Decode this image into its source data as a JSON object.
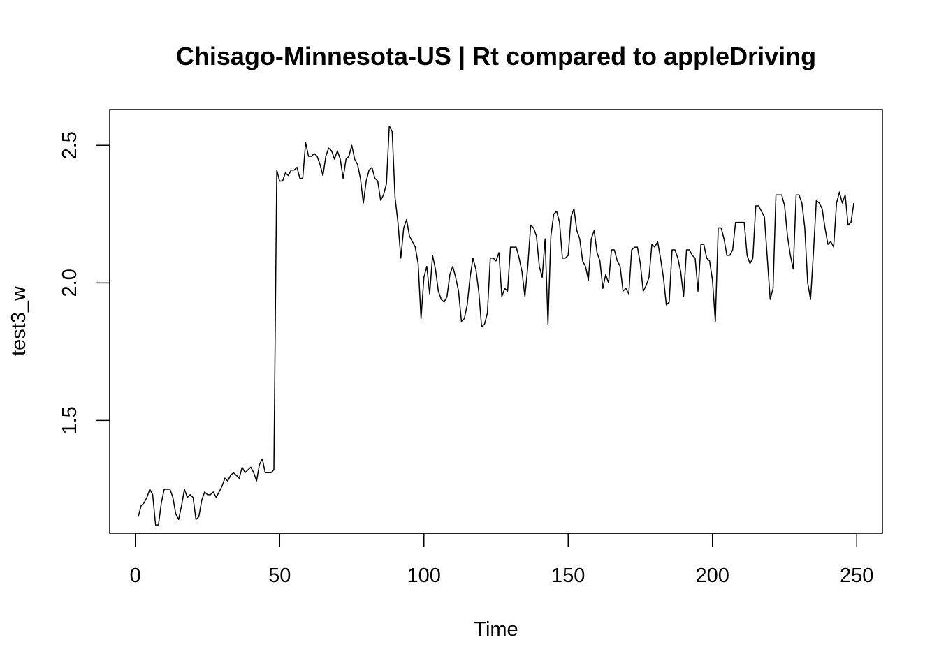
{
  "chart_data": {
    "type": "line",
    "title": "Chisago-Minnesota-US | Rt compared to appleDriving",
    "xlabel": "Time",
    "ylabel": "test3_w",
    "xlim": [
      -8.9,
      258.9
    ],
    "ylim": [
      1.09,
      2.63
    ],
    "x_ticks": [
      0,
      50,
      100,
      150,
      200,
      250
    ],
    "x_tick_labels": [
      "0",
      "50",
      "100",
      "150",
      "200",
      "250"
    ],
    "y_ticks": [
      1.5,
      2.0,
      2.5
    ],
    "y_tick_labels": [
      "1.5",
      "2.0",
      "2.5"
    ],
    "grid": false,
    "legend": "none",
    "line_color": "#000000",
    "series": [
      {
        "x_start": 1,
        "values": [
          1.15,
          1.19,
          1.2,
          1.22,
          1.25,
          1.23,
          1.12,
          1.12,
          1.2,
          1.25,
          1.25,
          1.25,
          1.22,
          1.16,
          1.14,
          1.19,
          1.25,
          1.22,
          1.23,
          1.22,
          1.14,
          1.15,
          1.21,
          1.24,
          1.23,
          1.23,
          1.24,
          1.22,
          1.24,
          1.26,
          1.29,
          1.28,
          1.3,
          1.31,
          1.3,
          1.29,
          1.33,
          1.31,
          1.32,
          1.33,
          1.31,
          1.28,
          1.34,
          1.36,
          1.31,
          1.31,
          1.31,
          1.32,
          2.41,
          2.37,
          2.37,
          2.4,
          2.39,
          2.41,
          2.41,
          2.42,
          2.38,
          2.38,
          2.51,
          2.46,
          2.46,
          2.47,
          2.46,
          2.43,
          2.39,
          2.46,
          2.49,
          2.48,
          2.45,
          2.48,
          2.45,
          2.38,
          2.45,
          2.46,
          2.5,
          2.45,
          2.43,
          2.38,
          2.29,
          2.37,
          2.41,
          2.42,
          2.38,
          2.37,
          2.3,
          2.32,
          2.36,
          2.57,
          2.55,
          2.31,
          2.22,
          2.09,
          2.2,
          2.23,
          2.17,
          2.15,
          2.13,
          2.07,
          1.87,
          2.02,
          2.06,
          1.96,
          2.1,
          2.05,
          1.97,
          1.94,
          1.93,
          1.95,
          2.03,
          2.06,
          2.02,
          1.97,
          1.86,
          1.87,
          1.92,
          2.02,
          2.09,
          2.05,
          1.97,
          1.84,
          1.85,
          1.89,
          2.09,
          2.09,
          2.08,
          2.11,
          1.95,
          1.98,
          1.97,
          2.13,
          2.13,
          2.13,
          2.09,
          2.04,
          1.95,
          2.06,
          2.21,
          2.2,
          2.17,
          2.06,
          2.02,
          2.16,
          1.85,
          2.17,
          2.25,
          2.26,
          2.22,
          2.09,
          2.09,
          2.1,
          2.24,
          2.27,
          2.19,
          2.16,
          2.08,
          2.06,
          2.01,
          2.16,
          2.19,
          2.11,
          2.08,
          1.98,
          2.03,
          2.0,
          2.12,
          2.12,
          2.08,
          2.06,
          1.97,
          1.98,
          1.96,
          2.12,
          2.13,
          2.13,
          2.07,
          1.97,
          1.99,
          2.02,
          2.14,
          2.13,
          2.15,
          2.09,
          2.02,
          1.92,
          1.93,
          2.12,
          2.12,
          2.09,
          2.04,
          1.95,
          2.12,
          2.12,
          2.1,
          2.09,
          1.97,
          2.14,
          2.14,
          2.09,
          2.08,
          2.01,
          1.86,
          2.2,
          2.2,
          2.16,
          2.1,
          2.1,
          2.12,
          2.22,
          2.22,
          2.22,
          2.22,
          2.1,
          2.07,
          2.09,
          2.28,
          2.28,
          2.26,
          2.24,
          2.09,
          1.94,
          1.98,
          2.32,
          2.32,
          2.32,
          2.28,
          2.17,
          2.1,
          2.05,
          2.32,
          2.32,
          2.29,
          2.2,
          2.0,
          1.94,
          2.11,
          2.3,
          2.29,
          2.27,
          2.2,
          2.14,
          2.15,
          2.13,
          2.29,
          2.33,
          2.29,
          2.32,
          2.21,
          2.22,
          2.29
        ]
      }
    ]
  }
}
